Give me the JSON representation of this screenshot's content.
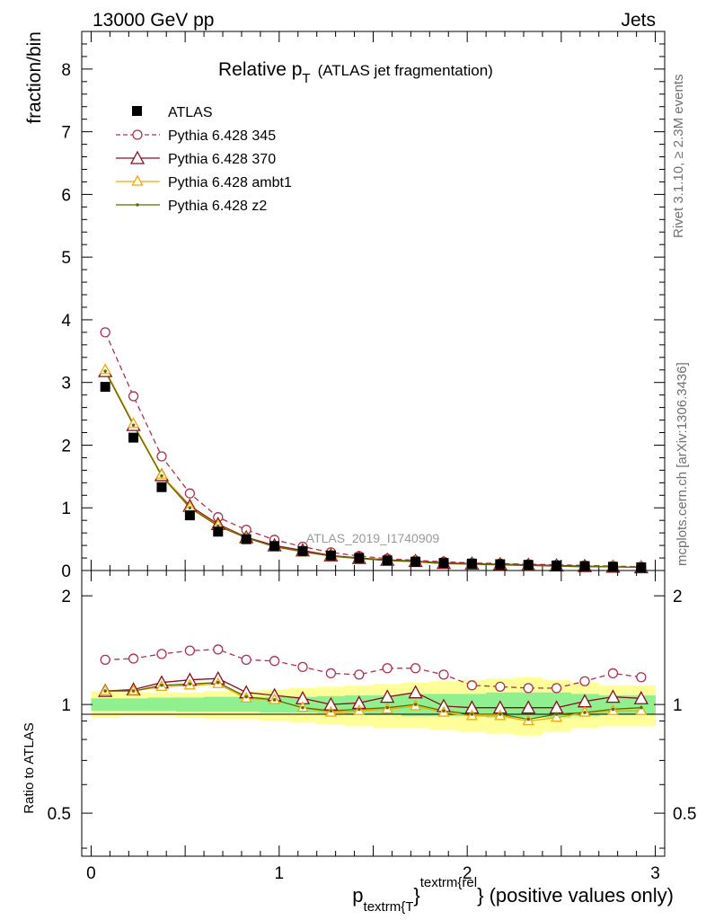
{
  "header": {
    "left": "13000 GeV pp",
    "right": "Jets",
    "side_top": "Rivet 3.1.10, ≥ 2.3M events",
    "side_bottom": "mcplots.cern.ch [arXiv:1306.3436]"
  },
  "main_panel": {
    "title_main": "Relative p",
    "title_sub": "T",
    "title_tail": "(ATLAS jet fragmentation)",
    "ylabel": "fraction/bin",
    "watermark": "ATLAS_2019_I1740909",
    "yticks": [
      "0",
      "1",
      "2",
      "3",
      "4",
      "5",
      "6",
      "7",
      "8"
    ]
  },
  "ratio_panel": {
    "ylabel": "Ratio to ATLAS",
    "yticks": [
      "0.5",
      "1",
      "2"
    ]
  },
  "xaxis": {
    "label_main": "p",
    "label_sub": "textrm{T",
    "label_brace": "}",
    "label_sup": "textrm{rel",
    "label_tail": "} (positive values only)",
    "ticks": [
      "0",
      "1",
      "2",
      "3"
    ]
  },
  "legend": {
    "entries": [
      {
        "label": "ATLAS"
      },
      {
        "label": "Pythia 6.428 345"
      },
      {
        "label": "Pythia 6.428 370"
      },
      {
        "label": "Pythia 6.428 ambt1"
      },
      {
        "label": "Pythia 6.428 z2"
      }
    ]
  },
  "colors": {
    "data": "#000000",
    "p345": "#b03050",
    "p370": "#8b0d1c",
    "ambt1": "#f2a900",
    "z2": "#5f6b00",
    "band_inner": "#90f090",
    "band_outer": "#ffff99"
  },
  "chart_data": [
    {
      "type": "scatter",
      "title": "Relative pT (ATLAS jet fragmentation)",
      "xlabel": "p_textrm{T}^textrm{rel} (positive values only)",
      "ylabel": "fraction/bin",
      "xlim": [
        -0.05,
        3.05
      ],
      "ylim": [
        0,
        8.6
      ],
      "grid": false,
      "legend_position": "top-left",
      "x": [
        0.075,
        0.225,
        0.375,
        0.525,
        0.675,
        0.825,
        0.975,
        1.125,
        1.275,
        1.425,
        1.575,
        1.725,
        1.875,
        2.025,
        2.175,
        2.325,
        2.475,
        2.625,
        2.775,
        2.925
      ],
      "series": [
        {
          "name": "ATLAS",
          "values": [
            2.93,
            2.12,
            1.33,
            0.88,
            0.62,
            0.5,
            0.39,
            0.31,
            0.24,
            0.2,
            0.16,
            0.14,
            0.12,
            0.11,
            0.1,
            0.09,
            0.08,
            0.07,
            0.06,
            0.05
          ]
        },
        {
          "name": "Pythia 6.428 345",
          "values": [
            3.8,
            2.78,
            1.82,
            1.23,
            0.85,
            0.65,
            0.49,
            0.38,
            0.29,
            0.23,
            0.19,
            0.16,
            0.14,
            0.12,
            0.11,
            0.1,
            0.09,
            0.08,
            0.07,
            0.06
          ]
        },
        {
          "name": "Pythia 6.428 370",
          "values": [
            3.18,
            2.32,
            1.52,
            1.03,
            0.74,
            0.53,
            0.4,
            0.32,
            0.24,
            0.2,
            0.17,
            0.15,
            0.12,
            0.11,
            0.1,
            0.09,
            0.08,
            0.07,
            0.06,
            0.05
          ]
        },
        {
          "name": "Pythia 6.428 ambt1",
          "values": [
            3.2,
            2.34,
            1.53,
            1.01,
            0.72,
            0.52,
            0.38,
            0.3,
            0.23,
            0.19,
            0.16,
            0.14,
            0.11,
            0.1,
            0.09,
            0.08,
            0.07,
            0.06,
            0.06,
            0.05
          ]
        },
        {
          "name": "Pythia 6.428 z2",
          "values": [
            3.18,
            2.32,
            1.51,
            1.0,
            0.71,
            0.52,
            0.38,
            0.3,
            0.23,
            0.19,
            0.16,
            0.14,
            0.11,
            0.1,
            0.09,
            0.08,
            0.07,
            0.06,
            0.06,
            0.05
          ]
        }
      ]
    },
    {
      "type": "line",
      "title": "",
      "xlabel": "p_textrm{T}^textrm{rel} (positive values only)",
      "ylabel": "Ratio to ATLAS",
      "xlim": [
        -0.05,
        3.05
      ],
      "ylim": [
        0.38,
        2.35
      ],
      "yscale": "log",
      "grid": false,
      "x": [
        0.075,
        0.225,
        0.375,
        0.525,
        0.675,
        0.825,
        0.975,
        1.125,
        1.275,
        1.425,
        1.575,
        1.725,
        1.875,
        2.025,
        2.175,
        2.325,
        2.475,
        2.625,
        2.775,
        2.925
      ],
      "band_inner": {
        "lo": [
          0.96,
          0.96,
          0.96,
          0.955,
          0.955,
          0.955,
          0.95,
          0.95,
          0.945,
          0.94,
          0.94,
          0.93,
          0.93,
          0.93,
          0.92,
          0.92,
          0.92,
          0.93,
          0.94,
          0.94
        ],
        "hi": [
          1.04,
          1.04,
          1.045,
          1.045,
          1.05,
          1.05,
          1.05,
          1.05,
          1.055,
          1.06,
          1.06,
          1.07,
          1.07,
          1.07,
          1.08,
          1.08,
          1.08,
          1.07,
          1.06,
          1.06
        ]
      },
      "band_outer": {
        "lo": [
          0.92,
          0.93,
          0.93,
          0.92,
          0.91,
          0.91,
          0.9,
          0.89,
          0.88,
          0.87,
          0.86,
          0.86,
          0.85,
          0.84,
          0.83,
          0.82,
          0.84,
          0.86,
          0.87,
          0.87
        ],
        "hi": [
          1.09,
          1.08,
          1.08,
          1.08,
          1.09,
          1.09,
          1.1,
          1.11,
          1.12,
          1.13,
          1.14,
          1.15,
          1.16,
          1.17,
          1.18,
          1.19,
          1.17,
          1.15,
          1.13,
          1.13
        ]
      },
      "series": [
        {
          "name": "Pythia 6.428 345",
          "values": [
            1.33,
            1.34,
            1.38,
            1.41,
            1.42,
            1.33,
            1.32,
            1.27,
            1.22,
            1.21,
            1.26,
            1.26,
            1.21,
            1.13,
            1.12,
            1.11,
            1.11,
            1.16,
            1.22,
            1.19
          ]
        },
        {
          "name": "Pythia 6.428 370",
          "values": [
            1.09,
            1.1,
            1.15,
            1.17,
            1.18,
            1.08,
            1.06,
            1.04,
            1.0,
            1.01,
            1.05,
            1.08,
            0.99,
            0.98,
            0.98,
            0.98,
            0.98,
            1.02,
            1.05,
            1.04
          ]
        },
        {
          "name": "Pythia 6.428 ambt1",
          "values": [
            1.09,
            1.09,
            1.12,
            1.13,
            1.14,
            1.04,
            1.03,
            0.98,
            0.95,
            0.96,
            0.97,
            0.99,
            0.95,
            0.93,
            0.93,
            0.9,
            0.92,
            0.95,
            0.96,
            0.96
          ]
        },
        {
          "name": "Pythia 6.428 z2",
          "values": [
            1.09,
            1.09,
            1.13,
            1.14,
            1.15,
            1.05,
            1.03,
            0.98,
            0.96,
            0.97,
            0.98,
            1.0,
            0.96,
            0.94,
            0.94,
            0.91,
            0.94,
            0.95,
            0.97,
            0.98
          ]
        }
      ]
    }
  ]
}
